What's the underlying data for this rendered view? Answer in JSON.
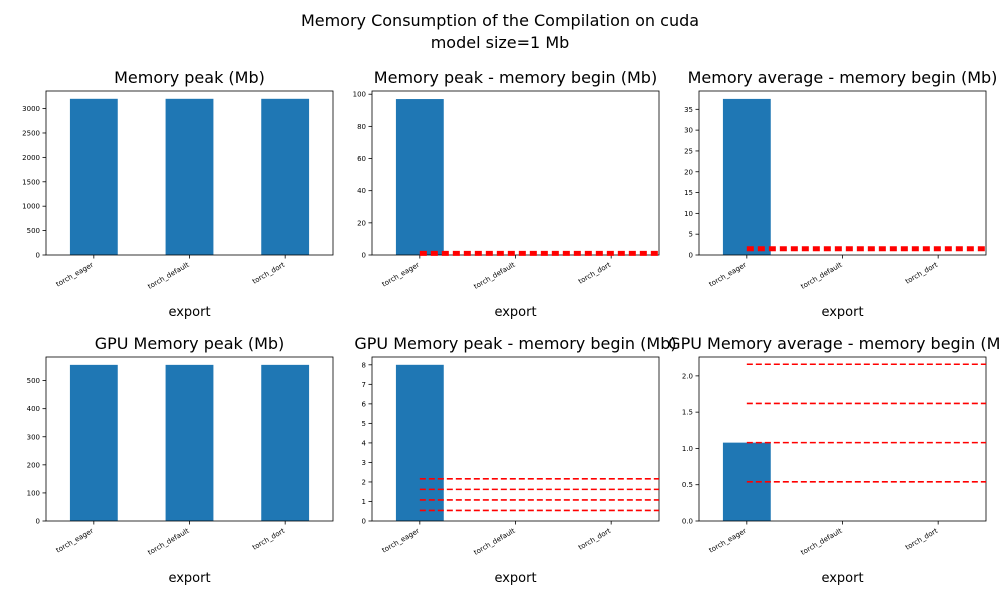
{
  "figure": {
    "suptitle_line1": "Memory Consumption of the Compilation on cuda",
    "suptitle_line2": "model size=1 Mb"
  },
  "colors": {
    "bar": "#1f77b4",
    "reference_line": "#ff0000",
    "axis": "#000000"
  },
  "chart_data": [
    {
      "type": "bar",
      "title": "Memory peak (Mb)",
      "xlabel": "export",
      "ylabel": "",
      "categories": [
        "torch_eager",
        "torch_default",
        "torch_dort"
      ],
      "values": [
        3200,
        3200,
        3200
      ],
      "ylim": [
        0,
        3360
      ],
      "yticks": [
        0,
        500,
        1000,
        1500,
        2000,
        2500,
        3000
      ],
      "hlines": [],
      "grid": false
    },
    {
      "type": "bar",
      "title": "Memory peak - memory begin (Mb)",
      "xlabel": "export",
      "ylabel": "",
      "categories": [
        "torch_eager",
        "torch_default",
        "torch_dort"
      ],
      "values": [
        97,
        0,
        0
      ],
      "ylim": [
        0,
        102
      ],
      "yticks": [
        0,
        20,
        40,
        60,
        80,
        100
      ],
      "hlines": [
        1.0
      ],
      "grid": false
    },
    {
      "type": "bar",
      "title": "Memory average - memory begin (Mb)",
      "xlabel": "export",
      "ylabel": "",
      "categories": [
        "torch_eager",
        "torch_default",
        "torch_dort"
      ],
      "values": [
        37.5,
        0,
        0
      ],
      "ylim": [
        0,
        39.4
      ],
      "yticks": [
        0,
        5,
        10,
        15,
        20,
        25,
        30,
        35
      ],
      "hlines": [
        1.5
      ],
      "grid": false
    },
    {
      "type": "bar",
      "title": "GPU Memory peak (Mb)",
      "xlabel": "export",
      "ylabel": "",
      "categories": [
        "torch_eager",
        "torch_default",
        "torch_dort"
      ],
      "values": [
        556,
        556,
        556
      ],
      "ylim": [
        0,
        584
      ],
      "yticks": [
        0,
        100,
        200,
        300,
        400,
        500
      ],
      "hlines": [],
      "grid": false
    },
    {
      "type": "bar",
      "title": "GPU Memory peak - memory begin (Mb)",
      "xlabel": "export",
      "ylabel": "",
      "categories": [
        "torch_eager",
        "torch_default",
        "torch_dort"
      ],
      "values": [
        8.0,
        0,
        0
      ],
      "ylim": [
        0,
        8.4
      ],
      "yticks": [
        0,
        1,
        2,
        3,
        4,
        5,
        6,
        7,
        8
      ],
      "hlines": [
        0.54,
        1.08,
        1.62,
        2.16
      ],
      "grid": false
    },
    {
      "type": "bar",
      "title": "GPU Memory average - memory begin (Mb)",
      "xlabel": "export",
      "ylabel": "",
      "categories": [
        "torch_eager",
        "torch_default",
        "torch_dort"
      ],
      "values": [
        1.08,
        0,
        0
      ],
      "ylim": [
        0,
        2.26
      ],
      "yticks": [
        0.0,
        0.5,
        1.0,
        1.5,
        2.0
      ],
      "yticklabels": [
        "0.0",
        "0.5",
        "1.0",
        "1.5",
        "2.0"
      ],
      "hlines": [
        0.54,
        1.08,
        1.62,
        2.16
      ],
      "grid": false
    }
  ]
}
